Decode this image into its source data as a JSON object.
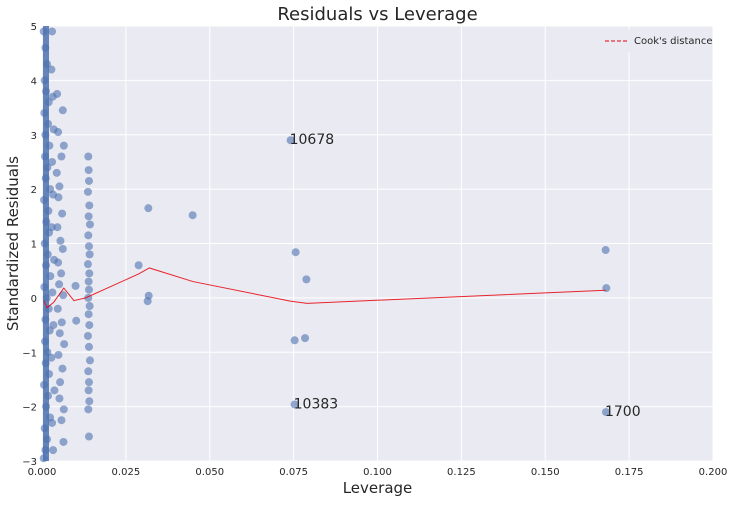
{
  "chart_data": {
    "type": "scatter",
    "title": "Residuals vs Leverage",
    "xlabel": "Leverage",
    "ylabel": "Standardized Residuals",
    "xlim": [
      0,
      0.2
    ],
    "ylim": [
      -3,
      5
    ],
    "grid": true,
    "xticks": [
      "0.000",
      "0.025",
      "0.050",
      "0.075",
      "0.100",
      "0.125",
      "0.150",
      "0.175",
      "0.200"
    ],
    "xtick_values": [
      0,
      0.025,
      0.05,
      0.075,
      0.1,
      0.125,
      0.15,
      0.175,
      0.2
    ],
    "yticks": [
      "5",
      "4",
      "3",
      "2",
      "1",
      "0",
      "−1",
      "−2",
      "−3"
    ],
    "ytick_values": [
      5,
      4,
      3,
      2,
      1,
      0,
      -1,
      -2,
      -3
    ],
    "legend": {
      "placement": "top-right",
      "entries": [
        "Cook's distance"
      ]
    },
    "colors": {
      "points": "#4c72b0",
      "line": "#e8000b",
      "background": "#eaeaf2",
      "grid": "#ffffff"
    },
    "series": [
      {
        "name": "",
        "style": "scatter",
        "points": [
          [
            0.0005,
            4.9
          ],
          [
            0.001,
            4.6
          ],
          [
            0.0015,
            4.3
          ],
          [
            0.0008,
            4.0
          ],
          [
            0.0012,
            3.8
          ],
          [
            0.002,
            3.6
          ],
          [
            0.0007,
            3.4
          ],
          [
            0.0018,
            3.2
          ],
          [
            0.001,
            3.0
          ],
          [
            0.0022,
            2.8
          ],
          [
            0.0009,
            2.6
          ],
          [
            0.0016,
            2.4
          ],
          [
            0.0011,
            2.2
          ],
          [
            0.0024,
            2.0
          ],
          [
            0.0006,
            1.8
          ],
          [
            0.0019,
            1.6
          ],
          [
            0.0013,
            1.4
          ],
          [
            0.0021,
            1.2
          ],
          [
            0.0008,
            1.0
          ],
          [
            0.0017,
            0.8
          ],
          [
            0.0012,
            0.6
          ],
          [
            0.0025,
            0.4
          ],
          [
            0.0007,
            0.2
          ],
          [
            0.0014,
            0.0
          ],
          [
            0.002,
            -0.2
          ],
          [
            0.001,
            -0.4
          ],
          [
            0.0023,
            -0.6
          ],
          [
            0.0009,
            -0.8
          ],
          [
            0.0016,
            -1.0
          ],
          [
            0.0011,
            -1.2
          ],
          [
            0.0021,
            -1.4
          ],
          [
            0.0006,
            -1.6
          ],
          [
            0.0018,
            -1.8
          ],
          [
            0.0012,
            -2.0
          ],
          [
            0.0024,
            -2.2
          ],
          [
            0.0008,
            -2.4
          ],
          [
            0.0015,
            -2.6
          ],
          [
            0.001,
            -2.8
          ],
          [
            0.0005,
            -2.95
          ],
          [
            0.003,
            4.9
          ],
          [
            0.0028,
            4.2
          ],
          [
            0.0032,
            3.7
          ],
          [
            0.0035,
            3.1
          ],
          [
            0.003,
            2.5
          ],
          [
            0.0033,
            1.9
          ],
          [
            0.0029,
            1.3
          ],
          [
            0.0036,
            0.7
          ],
          [
            0.0031,
            0.1
          ],
          [
            0.0034,
            -0.5
          ],
          [
            0.0028,
            -1.1
          ],
          [
            0.0037,
            -1.7
          ],
          [
            0.003,
            -2.3
          ],
          [
            0.0033,
            -2.8
          ],
          [
            0.0045,
            3.75
          ],
          [
            0.0062,
            3.45
          ],
          [
            0.0048,
            3.05
          ],
          [
            0.0065,
            2.8
          ],
          [
            0.0058,
            2.6
          ],
          [
            0.0044,
            2.3
          ],
          [
            0.0052,
            2.05
          ],
          [
            0.0049,
            1.85
          ],
          [
            0.006,
            1.55
          ],
          [
            0.0046,
            1.3
          ],
          [
            0.0055,
            1.05
          ],
          [
            0.0062,
            0.9
          ],
          [
            0.0048,
            0.65
          ],
          [
            0.0057,
            0.45
          ],
          [
            0.0051,
            0.25
          ],
          [
            0.0063,
            0.05
          ],
          [
            0.0047,
            -0.2
          ],
          [
            0.0059,
            -0.45
          ],
          [
            0.0053,
            -0.65
          ],
          [
            0.0066,
            -0.85
          ],
          [
            0.0049,
            -1.05
          ],
          [
            0.0061,
            -1.3
          ],
          [
            0.0054,
            -1.55
          ],
          [
            0.0065,
            -2.05
          ],
          [
            0.0064,
            -2.65
          ],
          [
            0.0052,
            -1.85
          ],
          [
            0.0058,
            -2.25
          ],
          [
            0.01,
            0.22
          ],
          [
            0.0102,
            -0.42
          ],
          [
            0.0138,
            2.6
          ],
          [
            0.0139,
            2.35
          ],
          [
            0.014,
            2.15
          ],
          [
            0.0137,
            1.95
          ],
          [
            0.0141,
            1.7
          ],
          [
            0.0139,
            1.5
          ],
          [
            0.0143,
            1.35
          ],
          [
            0.0138,
            1.15
          ],
          [
            0.014,
            0.95
          ],
          [
            0.0142,
            0.8
          ],
          [
            0.0137,
            0.62
          ],
          [
            0.0141,
            0.45
          ],
          [
            0.0139,
            0.3
          ],
          [
            0.014,
            0.15
          ],
          [
            0.0138,
            0.0
          ],
          [
            0.0142,
            -0.15
          ],
          [
            0.0139,
            -0.3
          ],
          [
            0.0141,
            -0.5
          ],
          [
            0.0137,
            -0.7
          ],
          [
            0.014,
            -0.9
          ],
          [
            0.0143,
            -1.15
          ],
          [
            0.0138,
            -1.35
          ],
          [
            0.014,
            -1.55
          ],
          [
            0.0139,
            -1.7
          ],
          [
            0.0141,
            -1.9
          ],
          [
            0.0138,
            -2.05
          ],
          [
            0.014,
            -2.55
          ],
          [
            0.0288,
            0.6
          ],
          [
            0.0317,
            1.65
          ],
          [
            0.0318,
            0.04
          ],
          [
            0.0315,
            -0.06
          ],
          [
            0.0449,
            1.52
          ],
          [
            0.0741,
            2.9
          ],
          [
            0.0756,
            0.84
          ],
          [
            0.0788,
            0.34
          ],
          [
            0.0753,
            -0.78
          ],
          [
            0.0784,
            -0.74
          ],
          [
            0.0753,
            -1.96
          ],
          [
            0.168,
            0.88
          ],
          [
            0.1682,
            0.18
          ],
          [
            0.1681,
            -2.1
          ]
        ]
      },
      {
        "name": "Cook's distance",
        "style": "line",
        "points": [
          [
            0.0005,
            -0.05
          ],
          [
            0.0015,
            -0.18
          ],
          [
            0.0035,
            -0.08
          ],
          [
            0.0065,
            0.18
          ],
          [
            0.0095,
            -0.05
          ],
          [
            0.013,
            0.0
          ],
          [
            0.0288,
            0.44
          ],
          [
            0.032,
            0.55
          ],
          [
            0.045,
            0.3
          ],
          [
            0.074,
            -0.06
          ],
          [
            0.079,
            -0.1
          ],
          [
            0.168,
            0.14
          ]
        ]
      }
    ],
    "annotations": [
      {
        "text": "10678",
        "x": 0.0741,
        "y": 2.9
      },
      {
        "text": "10383",
        "x": 0.0753,
        "y": -1.96
      },
      {
        "text": "1700",
        "x": 0.1681,
        "y": -2.1
      }
    ]
  }
}
